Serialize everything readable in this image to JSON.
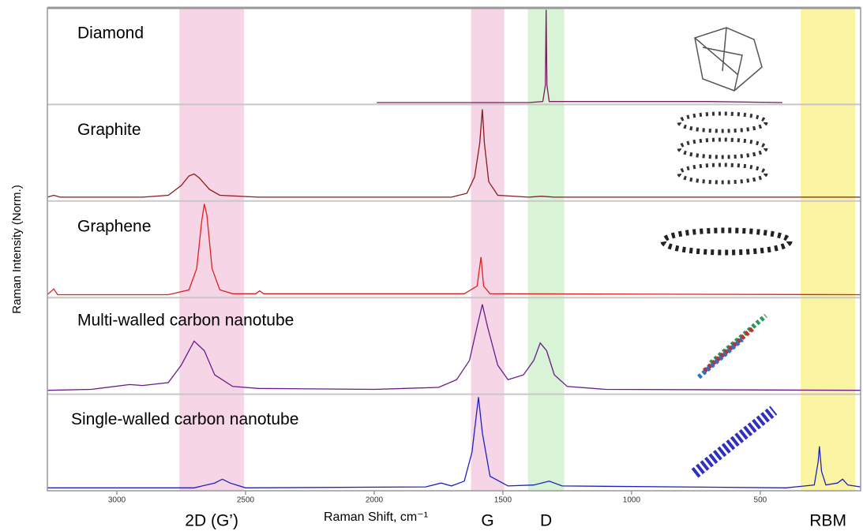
{
  "chart_data": [
    {
      "type": "line",
      "title": "Diamond",
      "color": "#7a1a60",
      "xlim": [
        3270,
        110
      ],
      "ylim": [
        0,
        1
      ],
      "ylabel": "Raman Intensity (Norm.)",
      "x": [
        1990,
        1400,
        1345,
        1335,
        1332,
        1329,
        1320,
        1200,
        700,
        414
      ],
      "values": [
        0.02,
        0.02,
        0.03,
        0.2,
        0.98,
        0.2,
        0.03,
        0.03,
        0.03,
        0.02
      ]
    },
    {
      "type": "line",
      "title": "Graphite",
      "color": "#8b1a1a",
      "xlim": [
        3270,
        110
      ],
      "ylim": [
        0,
        1
      ],
      "x": [
        3270,
        3245,
        3220,
        2900,
        2800,
        2750,
        2720,
        2700,
        2680,
        2640,
        2600,
        2450,
        1700,
        1640,
        1610,
        1590,
        1580,
        1572,
        1555,
        1520,
        1400,
        1350,
        1300,
        110
      ],
      "values": [
        0.04,
        0.06,
        0.04,
        0.04,
        0.06,
        0.16,
        0.26,
        0.28,
        0.24,
        0.12,
        0.06,
        0.04,
        0.04,
        0.08,
        0.25,
        0.6,
        0.95,
        0.6,
        0.2,
        0.06,
        0.04,
        0.05,
        0.04,
        0.04
      ]
    },
    {
      "type": "line",
      "title": "Graphene",
      "color": "#e0201f",
      "xlim": [
        3270,
        110
      ],
      "ylim": [
        0,
        1
      ],
      "x": [
        3270,
        3245,
        3230,
        2800,
        2720,
        2690,
        2670,
        2660,
        2650,
        2630,
        2600,
        2550,
        2460,
        2445,
        2430,
        1650,
        1600,
        1585,
        1575,
        1550,
        110
      ],
      "values": [
        0.03,
        0.09,
        0.03,
        0.03,
        0.08,
        0.3,
        0.8,
        0.97,
        0.85,
        0.3,
        0.08,
        0.04,
        0.04,
        0.07,
        0.04,
        0.04,
        0.12,
        0.42,
        0.12,
        0.04,
        0.03
      ]
    },
    {
      "type": "line",
      "title": "Multi-walled carbon nanotube",
      "color": "#6a1a8a",
      "xlim": [
        3270,
        110
      ],
      "ylim": [
        0,
        1
      ],
      "x": [
        3270,
        3100,
        2950,
        2900,
        2800,
        2750,
        2700,
        2660,
        2620,
        2550,
        2450,
        2000,
        1750,
        1680,
        1630,
        1600,
        1580,
        1560,
        1520,
        1480,
        1420,
        1380,
        1355,
        1330,
        1300,
        1250,
        1100,
        110
      ],
      "values": [
        0.04,
        0.05,
        0.1,
        0.09,
        0.12,
        0.3,
        0.55,
        0.45,
        0.2,
        0.08,
        0.06,
        0.05,
        0.07,
        0.15,
        0.35,
        0.7,
        0.93,
        0.7,
        0.3,
        0.15,
        0.2,
        0.35,
        0.53,
        0.45,
        0.2,
        0.08,
        0.05,
        0.04
      ]
    },
    {
      "type": "line",
      "title": "Single-walled carbon nanotube",
      "color": "#2020c0",
      "xlim": [
        3270,
        110
      ],
      "ylim": [
        0,
        1
      ],
      "xlabel": "Raman Shift, cm⁻¹",
      "xticks": [
        3000,
        2500,
        2000,
        1500,
        1000,
        500
      ],
      "regions": [
        {
          "label": "2D (G’)",
          "range": [
            2757,
            2506
          ],
          "color": "#f6d5e6"
        },
        {
          "label": "G",
          "range": [
            1624,
            1495
          ],
          "color": "#f6d5e6"
        },
        {
          "label": "D",
          "range": [
            1403,
            1262
          ],
          "color": "#d9f3d6"
        },
        {
          "label": "RBM",
          "range": [
            343,
            131
          ],
          "color": "#fbf5a3"
        }
      ],
      "x": [
        3270,
        2700,
        2620,
        2590,
        2560,
        2500,
        1800,
        1740,
        1700,
        1650,
        1620,
        1595,
        1580,
        1550,
        1480,
        1380,
        1320,
        1270,
        400,
        290,
        275,
        270,
        262,
        245,
        200,
        180,
        160,
        110
      ],
      "values": [
        0.03,
        0.03,
        0.08,
        0.12,
        0.08,
        0.03,
        0.04,
        0.08,
        0.05,
        0.1,
        0.4,
        0.97,
        0.6,
        0.15,
        0.05,
        0.06,
        0.1,
        0.05,
        0.03,
        0.06,
        0.3,
        0.46,
        0.2,
        0.06,
        0.08,
        0.12,
        0.06,
        0.04
      ]
    }
  ]
}
